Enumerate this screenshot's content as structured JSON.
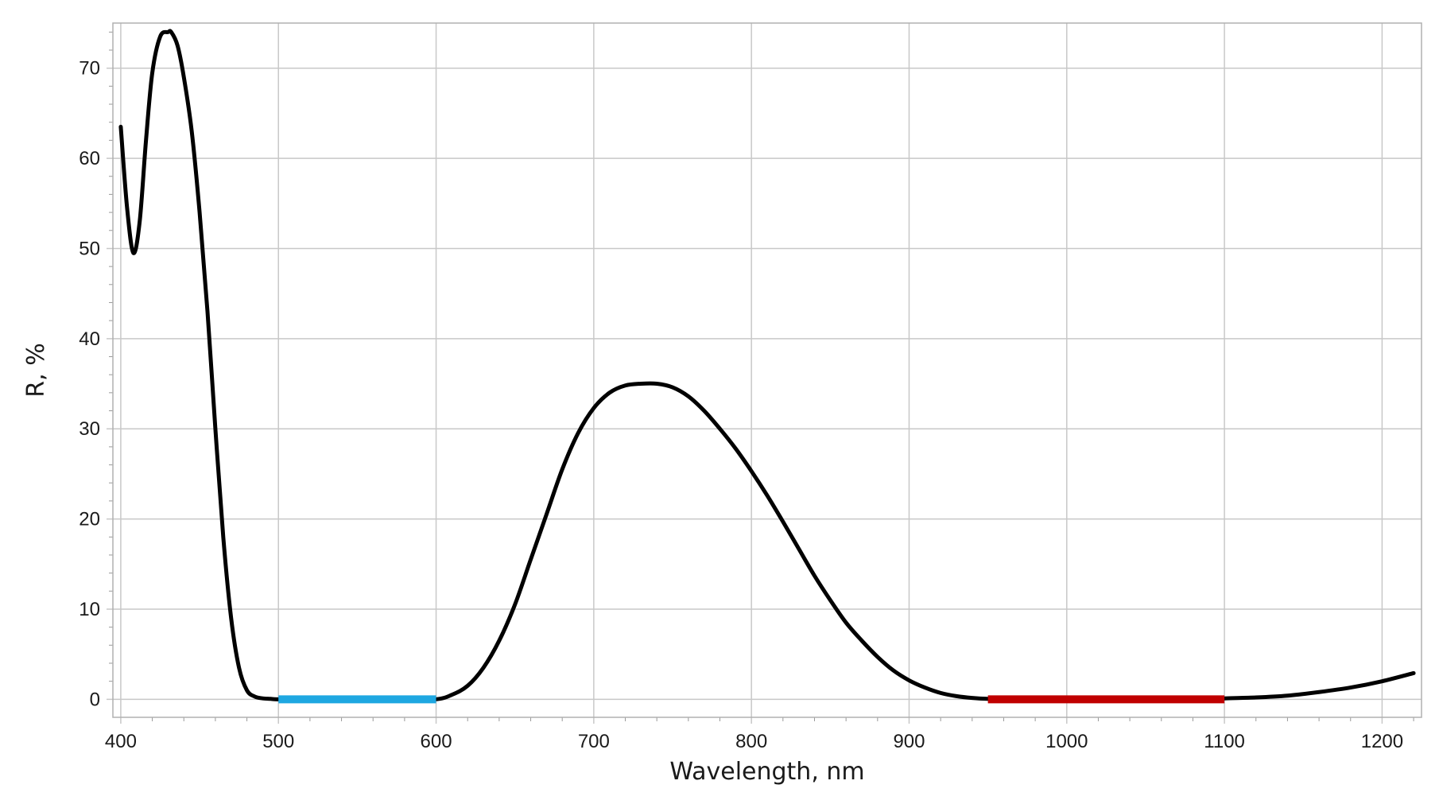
{
  "chart_data": {
    "type": "line",
    "title": "",
    "xlabel": "Wavelength, nm",
    "ylabel": "R, %",
    "xlim": [
      395,
      1225
    ],
    "ylim": [
      -2,
      75
    ],
    "x_ticks": [
      400,
      500,
      600,
      700,
      800,
      900,
      1000,
      1100,
      1200
    ],
    "y_ticks": [
      0,
      10,
      20,
      30,
      40,
      50,
      60,
      70
    ],
    "grid": true,
    "legend": "none",
    "series": [
      {
        "color": "#000000",
        "x": [
          400,
          404,
          408,
          412,
          416,
          420,
          425,
          430,
          432,
          436,
          440,
          445,
          450,
          455,
          460,
          465,
          470,
          475,
          480,
          485,
          490,
          495,
          500,
          520,
          540,
          560,
          580,
          600,
          610,
          620,
          630,
          640,
          650,
          660,
          670,
          680,
          690,
          700,
          710,
          720,
          730,
          740,
          750,
          760,
          770,
          780,
          790,
          800,
          810,
          820,
          830,
          840,
          850,
          860,
          870,
          880,
          890,
          900,
          910,
          920,
          930,
          940,
          950,
          970,
          990,
          1010,
          1030,
          1050,
          1070,
          1090,
          1100,
          1120,
          1140,
          1160,
          1180,
          1200,
          1220
        ],
        "y": [
          63.5,
          54.5,
          49.5,
          53,
          62,
          69.5,
          73.5,
          74,
          74,
          72.5,
          69,
          63,
          54,
          43,
          30,
          18,
          9,
          3.5,
          1,
          0.3,
          0.1,
          0.05,
          0,
          0,
          0,
          0,
          0,
          0,
          0.5,
          1.5,
          3.5,
          6.5,
          10.5,
          15.5,
          20.5,
          25.5,
          29.5,
          32.3,
          34,
          34.8,
          35,
          35,
          34.6,
          33.6,
          32,
          30,
          27.8,
          25.3,
          22.6,
          19.7,
          16.7,
          13.7,
          11,
          8.5,
          6.5,
          4.7,
          3.2,
          2.1,
          1.3,
          0.7,
          0.35,
          0.15,
          0.05,
          0,
          0,
          0.05,
          0,
          0,
          0,
          0,
          0.1,
          0.2,
          0.4,
          0.8,
          1.3,
          2,
          2.9
        ]
      }
    ],
    "bands": [
      {
        "color": "#1ea7e1",
        "x_start": 500,
        "x_end": 600,
        "y": 0
      },
      {
        "color": "#c00000",
        "x_start": 950,
        "x_end": 1100,
        "y": 0
      }
    ]
  }
}
